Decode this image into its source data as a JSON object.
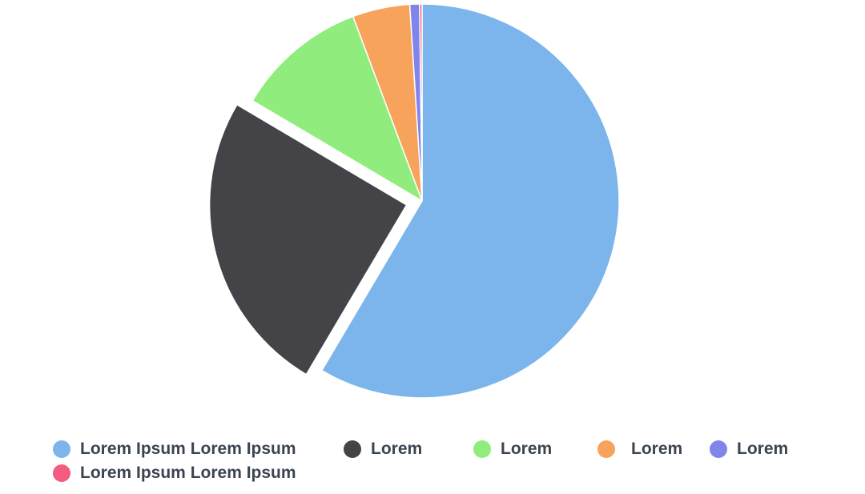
{
  "chart_data": {
    "type": "pie",
    "title": "",
    "slices": [
      {
        "label": "Lorem Ipsum Lorem Ipsum",
        "value": 58.5,
        "color": "#7cb4ec",
        "exploded": false
      },
      {
        "label": "Lorem",
        "value": 25.0,
        "color": "#434348",
        "exploded": true
      },
      {
        "label": "Lorem",
        "value": 10.8,
        "color": "#90ed7d",
        "exploded": false
      },
      {
        "label": "Lorem",
        "value": 4.7,
        "color": "#f7a35c",
        "exploded": false
      },
      {
        "label": "Lorem",
        "value": 0.8,
        "color": "#8085e9",
        "exploded": false
      },
      {
        "label": "Lorem Ipsum Lorem Ipsum",
        "value": 0.2,
        "color": "#f15c80",
        "exploded": false
      }
    ],
    "legend_position": "bottom"
  }
}
